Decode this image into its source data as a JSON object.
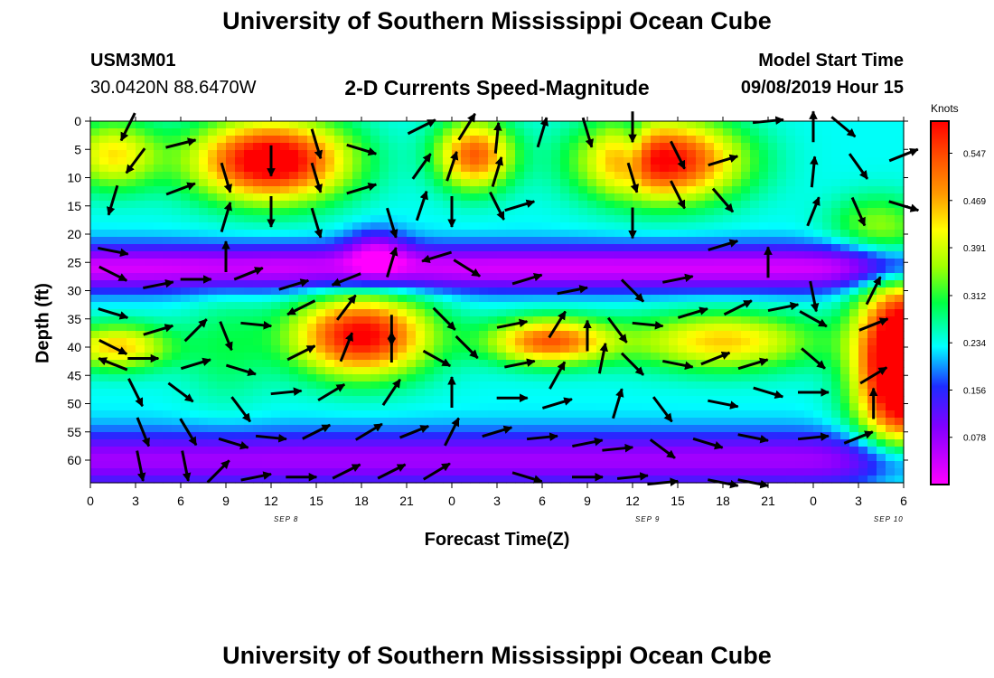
{
  "header": {
    "title": "University of Southern Mississippi Ocean Cube",
    "station_id": "USM3M01",
    "coords": "30.0420N 88.6470W",
    "subtitle": "2-D Currents Speed-Magnitude",
    "model_label": "Model Start Time",
    "model_time": "09/08/2019 Hour 15"
  },
  "footer": {
    "title": "University of Southern Mississippi Ocean Cube"
  },
  "chart_data": {
    "type": "heatmap",
    "title": "2-D Currents Speed-Magnitude",
    "xlabel": "Forecast Time(Z)",
    "ylabel": "Depth (ft)",
    "x_ticks": [
      "0",
      "3",
      "6",
      "9",
      "12",
      "15",
      "18",
      "21",
      "0",
      "3",
      "6",
      "9",
      "12",
      "15",
      "18",
      "21",
      "0",
      "3",
      "6"
    ],
    "date_labels": [
      {
        "label": "SEP 8",
        "hour": 13
      },
      {
        "label": "SEP 9",
        "hour": 37
      },
      {
        "label": "SEP 10",
        "hour": 53
      }
    ],
    "xlim": [
      0,
      54
    ],
    "y_ticks": [
      0,
      5,
      10,
      15,
      20,
      25,
      30,
      35,
      40,
      45,
      50,
      55,
      60
    ],
    "ylim": [
      0,
      64
    ],
    "colorbar": {
      "label": "Knots",
      "ticks": [
        "0.547",
        "0.469",
        "0.391",
        "0.312",
        "0.234",
        "0.156",
        "0.078"
      ],
      "tick_values": [
        0.547,
        0.469,
        0.391,
        0.312,
        0.234,
        0.156,
        0.078
      ],
      "range": [
        0,
        0.6
      ]
    },
    "blobs": [
      {
        "h": 12,
        "d": 7,
        "a": 0.42,
        "sx": 5,
        "sy": 7
      },
      {
        "h": 25.5,
        "d": 6,
        "a": 0.3,
        "sx": 2.5,
        "sy": 6
      },
      {
        "h": 38,
        "d": 7,
        "a": 0.38,
        "sx": 5,
        "sy": 7
      },
      {
        "h": 1.5,
        "d": 6,
        "a": 0.2,
        "sx": 3,
        "sy": 6
      },
      {
        "h": 1.8,
        "d": 40,
        "a": 0.22,
        "sx": 3.5,
        "sy": 4
      },
      {
        "h": 18,
        "d": 38,
        "a": 0.38,
        "sx": 4.5,
        "sy": 7
      },
      {
        "h": 30.5,
        "d": 39,
        "a": 0.3,
        "sx": 4,
        "sy": 4
      },
      {
        "h": 42,
        "d": 39,
        "a": 0.22,
        "sx": 6,
        "sy": 5
      },
      {
        "h": 54,
        "d": 43,
        "a": 0.55,
        "sx": 3,
        "sy": 15
      },
      {
        "h": 9,
        "d": 40,
        "a": 0.06,
        "sx": 3,
        "sy": 10
      },
      {
        "h": 19,
        "d": 23,
        "a": -0.12,
        "sx": 2,
        "sy": 4
      },
      {
        "h": 52,
        "d": 18,
        "a": 0.1,
        "sx": 3,
        "sy": 5
      },
      {
        "h": 36,
        "d": 5,
        "a": -0.1,
        "sx": 1,
        "sy": 6
      }
    ],
    "bands": [
      {
        "d": 26,
        "a": -0.2,
        "s": 4
      },
      {
        "d": 60,
        "a": -0.16,
        "s": 5
      }
    ],
    "base": 0.23,
    "vectors": [
      {
        "h": 1.5,
        "d": 14,
        "u": -0.3,
        "v": -1
      },
      {
        "h": 2.5,
        "d": 1,
        "u": -0.5,
        "v": -1
      },
      {
        "h": 3,
        "d": 7,
        "u": -0.6,
        "v": -0.8
      },
      {
        "h": 6,
        "d": 4,
        "u": 0.8,
        "v": 0.2
      },
      {
        "h": 6,
        "d": 12,
        "u": 0.8,
        "v": 0.3
      },
      {
        "h": 9,
        "d": 10,
        "u": 0.3,
        "v": -1
      },
      {
        "h": 9,
        "d": 17,
        "u": 0.3,
        "v": 1
      },
      {
        "h": 12,
        "d": 7,
        "u": 0,
        "v": -1
      },
      {
        "h": 12,
        "d": 16,
        "u": 0,
        "v": -1
      },
      {
        "h": 15,
        "d": 4,
        "u": 0.3,
        "v": -1
      },
      {
        "h": 15,
        "d": 10,
        "u": 0.3,
        "v": -1
      },
      {
        "h": 15,
        "d": 18,
        "u": 0.3,
        "v": -1
      },
      {
        "h": 18,
        "d": 5,
        "u": 1,
        "v": -0.3
      },
      {
        "h": 18,
        "d": 12,
        "u": 1,
        "v": 0.3
      },
      {
        "h": 20,
        "d": 18,
        "u": 0.3,
        "v": -1
      },
      {
        "h": 22,
        "d": 1,
        "u": 1,
        "v": 0.5
      },
      {
        "h": 22,
        "d": 8,
        "u": 0.5,
        "v": 0.7
      },
      {
        "h": 22,
        "d": 15,
        "u": 0.3,
        "v": 0.9
      },
      {
        "h": 25,
        "d": 1,
        "u": 0.5,
        "v": 0.8
      },
      {
        "h": 24,
        "d": 8,
        "u": 0.3,
        "v": 0.9
      },
      {
        "h": 24,
        "d": 16,
        "u": 0,
        "v": -1
      },
      {
        "h": 27,
        "d": 3,
        "u": 0.1,
        "v": 1
      },
      {
        "h": 27,
        "d": 9,
        "u": 0.3,
        "v": 1
      },
      {
        "h": 27,
        "d": 15,
        "u": 0.4,
        "v": -0.8
      },
      {
        "h": 28.5,
        "d": 15,
        "u": 1,
        "v": 0.3
      },
      {
        "h": 30,
        "d": 2,
        "u": 0.3,
        "v": 1
      },
      {
        "h": 33,
        "d": 2,
        "u": 0.3,
        "v": -1
      },
      {
        "h": 36,
        "d": 1,
        "u": 0,
        "v": -1
      },
      {
        "h": 36,
        "d": 10,
        "u": 0.3,
        "v": -1
      },
      {
        "h": 36,
        "d": 18,
        "u": 0,
        "v": -1
      },
      {
        "h": 39,
        "d": 6,
        "u": 0.4,
        "v": -0.8
      },
      {
        "h": 39,
        "d": 13,
        "u": 0.4,
        "v": -0.8
      },
      {
        "h": 42,
        "d": 7,
        "u": 1,
        "v": 0.3
      },
      {
        "h": 42,
        "d": 14,
        "u": 0.6,
        "v": -0.7
      },
      {
        "h": 45,
        "d": 0,
        "u": 1,
        "v": 0.1
      },
      {
        "h": 48,
        "d": 1,
        "u": 0,
        "v": 1
      },
      {
        "h": 48,
        "d": 9,
        "u": 0.1,
        "v": 1
      },
      {
        "h": 48,
        "d": 16,
        "u": 0.4,
        "v": 1
      },
      {
        "h": 50,
        "d": 1,
        "u": 0.6,
        "v": -0.5
      },
      {
        "h": 51,
        "d": 8,
        "u": 0.5,
        "v": -0.7
      },
      {
        "h": 51,
        "d": 16,
        "u": 0.4,
        "v": -0.9
      },
      {
        "h": 54,
        "d": 6,
        "u": 1,
        "v": 0.4
      },
      {
        "h": 54,
        "d": 15,
        "u": 1,
        "v": -0.3
      },
      {
        "h": 1.5,
        "d": 23,
        "u": 1,
        "v": -0.2
      },
      {
        "h": 1.5,
        "d": 27,
        "u": 1,
        "v": -0.5
      },
      {
        "h": 4.5,
        "d": 29,
        "u": 1,
        "v": 0.2
      },
      {
        "h": 7,
        "d": 28,
        "u": 1,
        "v": 0
      },
      {
        "h": 9,
        "d": 24,
        "u": 0,
        "v": 1
      },
      {
        "h": 10.5,
        "d": 27,
        "u": 1,
        "v": 0.4
      },
      {
        "h": 13.5,
        "d": 29,
        "u": 1,
        "v": 0.3
      },
      {
        "h": 17,
        "d": 28,
        "u": -1,
        "v": -0.4
      },
      {
        "h": 20,
        "d": 25,
        "u": 0.3,
        "v": 1
      },
      {
        "h": 23,
        "d": 24,
        "u": -1,
        "v": -0.3
      },
      {
        "h": 25,
        "d": 26,
        "u": 0.8,
        "v": -0.5
      },
      {
        "h": 29,
        "d": 28,
        "u": 1,
        "v": 0.3
      },
      {
        "h": 32,
        "d": 30,
        "u": 1,
        "v": 0.2
      },
      {
        "h": 36,
        "d": 30,
        "u": 0.6,
        "v": -0.6
      },
      {
        "h": 39,
        "d": 28,
        "u": 1,
        "v": 0.2
      },
      {
        "h": 42,
        "d": 22,
        "u": 1,
        "v": 0.3
      },
      {
        "h": 45,
        "d": 25,
        "u": 0,
        "v": 1
      },
      {
        "h": 48,
        "d": 31,
        "u": 0.2,
        "v": -1
      },
      {
        "h": 52,
        "d": 30,
        "u": 0.5,
        "v": 1
      },
      {
        "h": 1.5,
        "d": 34,
        "u": 1,
        "v": -0.3
      },
      {
        "h": 1.5,
        "d": 40,
        "u": 1,
        "v": -0.5
      },
      {
        "h": 4.5,
        "d": 37,
        "u": 1,
        "v": 0.3
      },
      {
        "h": 7,
        "d": 37,
        "u": 0.7,
        "v": 0.7
      },
      {
        "h": 9,
        "d": 38,
        "u": 0.4,
        "v": -1
      },
      {
        "h": 11,
        "d": 36,
        "u": 1,
        "v": -0.1
      },
      {
        "h": 14,
        "d": 33,
        "u": -1,
        "v": -0.5
      },
      {
        "h": 17,
        "d": 33,
        "u": 0.6,
        "v": 0.8
      },
      {
        "h": 20,
        "d": 37,
        "u": 0,
        "v": -1
      },
      {
        "h": 23.5,
        "d": 35,
        "u": 0.7,
        "v": -0.7
      },
      {
        "h": 25,
        "d": 40,
        "u": 0.7,
        "v": -0.7
      },
      {
        "h": 28,
        "d": 36,
        "u": 1,
        "v": 0.2
      },
      {
        "h": 31,
        "d": 36,
        "u": 0.5,
        "v": 0.8
      },
      {
        "h": 33,
        "d": 38,
        "u": 0,
        "v": 1
      },
      {
        "h": 35,
        "d": 37,
        "u": 0.6,
        "v": -0.8
      },
      {
        "h": 37,
        "d": 36,
        "u": 1,
        "v": -0.1
      },
      {
        "h": 40,
        "d": 34,
        "u": 1,
        "v": 0.3
      },
      {
        "h": 43,
        "d": 33,
        "u": 1,
        "v": 0.5
      },
      {
        "h": 46,
        "d": 33,
        "u": 1,
        "v": 0.2
      },
      {
        "h": 48,
        "d": 35,
        "u": 0.9,
        "v": -0.5
      },
      {
        "h": 52,
        "d": 36,
        "u": 1,
        "v": 0.4
      },
      {
        "h": 1.5,
        "d": 43,
        "u": -1,
        "v": 0.4
      },
      {
        "h": 3.5,
        "d": 42,
        "u": 1,
        "v": 0
      },
      {
        "h": 7,
        "d": 43,
        "u": 1,
        "v": 0.3
      },
      {
        "h": 10,
        "d": 44,
        "u": 1,
        "v": -0.3
      },
      {
        "h": 14,
        "d": 41,
        "u": 1,
        "v": 0.5
      },
      {
        "h": 17,
        "d": 40,
        "u": 0.4,
        "v": 1
      },
      {
        "h": 20,
        "d": 40,
        "u": 0,
        "v": 1
      },
      {
        "h": 23,
        "d": 42,
        "u": 0.9,
        "v": -0.5
      },
      {
        "h": 28.5,
        "d": 43,
        "u": 1,
        "v": 0.2
      },
      {
        "h": 31,
        "d": 45,
        "u": 0.5,
        "v": 0.9
      },
      {
        "h": 34,
        "d": 42,
        "u": 0.2,
        "v": 1
      },
      {
        "h": 36,
        "d": 43,
        "u": 0.7,
        "v": -0.7
      },
      {
        "h": 39,
        "d": 43,
        "u": 1,
        "v": -0.2
      },
      {
        "h": 41.5,
        "d": 42,
        "u": 1,
        "v": 0.4
      },
      {
        "h": 44,
        "d": 43,
        "u": 1,
        "v": 0.3
      },
      {
        "h": 48,
        "d": 42,
        "u": 0.7,
        "v": -0.6
      },
      {
        "h": 52,
        "d": 45,
        "u": 1,
        "v": 0.6
      },
      {
        "h": 3,
        "d": 48,
        "u": 0.5,
        "v": -1
      },
      {
        "h": 6,
        "d": 48,
        "u": 0.8,
        "v": -0.6
      },
      {
        "h": 10,
        "d": 51,
        "u": 0.6,
        "v": -0.8
      },
      {
        "h": 13,
        "d": 48,
        "u": 1,
        "v": 0.1
      },
      {
        "h": 16,
        "d": 48,
        "u": 1,
        "v": 0.6
      },
      {
        "h": 20,
        "d": 48,
        "u": 0.6,
        "v": 0.9
      },
      {
        "h": 24,
        "d": 48,
        "u": 0,
        "v": 1
      },
      {
        "h": 28,
        "d": 49,
        "u": 1,
        "v": 0
      },
      {
        "h": 31,
        "d": 50,
        "u": 1,
        "v": 0.3
      },
      {
        "h": 35,
        "d": 50,
        "u": 0.3,
        "v": 1
      },
      {
        "h": 38,
        "d": 51,
        "u": 0.6,
        "v": -0.8
      },
      {
        "h": 42,
        "d": 50,
        "u": 1,
        "v": -0.2
      },
      {
        "h": 45,
        "d": 48,
        "u": 1,
        "v": -0.3
      },
      {
        "h": 48,
        "d": 48,
        "u": 1,
        "v": 0
      },
      {
        "h": 52,
        "d": 50,
        "u": 0,
        "v": 1
      },
      {
        "h": 3.5,
        "d": 55,
        "u": 0.4,
        "v": -1
      },
      {
        "h": 6.5,
        "d": 55,
        "u": 0.6,
        "v": -1
      },
      {
        "h": 9.5,
        "d": 57,
        "u": 1,
        "v": -0.3
      },
      {
        "h": 12,
        "d": 56,
        "u": 1,
        "v": -0.1
      },
      {
        "h": 15,
        "d": 55,
        "u": 1,
        "v": 0.5
      },
      {
        "h": 18.5,
        "d": 55,
        "u": 1,
        "v": 0.6
      },
      {
        "h": 21.5,
        "d": 55,
        "u": 1,
        "v": 0.4
      },
      {
        "h": 24,
        "d": 55,
        "u": 0.5,
        "v": 1
      },
      {
        "h": 27,
        "d": 55,
        "u": 1,
        "v": 0.3
      },
      {
        "h": 30,
        "d": 56,
        "u": 1,
        "v": 0.1
      },
      {
        "h": 33,
        "d": 57,
        "u": 1,
        "v": 0.2
      },
      {
        "h": 35,
        "d": 58,
        "u": 1,
        "v": 0.1
      },
      {
        "h": 38,
        "d": 58,
        "u": 0.8,
        "v": -0.6
      },
      {
        "h": 41,
        "d": 57,
        "u": 1,
        "v": -0.3
      },
      {
        "h": 44,
        "d": 56,
        "u": 1,
        "v": -0.2
      },
      {
        "h": 48,
        "d": 56,
        "u": 1,
        "v": 0.1
      },
      {
        "h": 51,
        "d": 56,
        "u": 1,
        "v": 0.4
      },
      {
        "h": 3.3,
        "d": 61,
        "u": 0.2,
        "v": -1
      },
      {
        "h": 6.3,
        "d": 61,
        "u": 0.2,
        "v": -1
      },
      {
        "h": 8.5,
        "d": 62,
        "u": 0.7,
        "v": 0.7
      },
      {
        "h": 11,
        "d": 63,
        "u": 1,
        "v": 0.2
      },
      {
        "h": 14,
        "d": 63,
        "u": 1,
        "v": 0
      },
      {
        "h": 17,
        "d": 62,
        "u": 1,
        "v": 0.5
      },
      {
        "h": 20,
        "d": 62,
        "u": 1,
        "v": 0.5
      },
      {
        "h": 23,
        "d": 62,
        "u": 1,
        "v": 0.6
      },
      {
        "h": 29,
        "d": 63,
        "u": 1,
        "v": -0.3
      },
      {
        "h": 33,
        "d": 63,
        "u": 1,
        "v": 0
      },
      {
        "h": 36,
        "d": 63,
        "u": 1,
        "v": 0.1
      },
      {
        "h": 38,
        "d": 64,
        "u": 1,
        "v": 0.1
      },
      {
        "h": 42,
        "d": 64,
        "u": 1,
        "v": -0.2
      },
      {
        "h": 44,
        "d": 64,
        "u": 1,
        "v": -0.2
      }
    ]
  }
}
